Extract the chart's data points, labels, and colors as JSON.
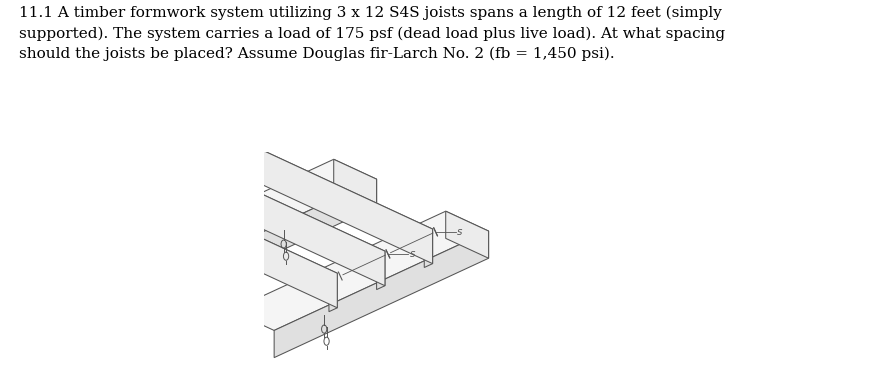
{
  "title_text": "11.1 A timber formwork system utilizing 3 x 12 S4S joists spans a length of 12 feet (simply\nsupported). The system carries a load of 175 psf (dead load plus live load). At what spacing\nshould the joists be placed? Assume Douglas fir-Larch No. 2 (fb = 1,450 psi).",
  "text_color": "#000000",
  "bg_color": "#ffffff",
  "font_size": 11.0,
  "fig_width": 8.77,
  "fig_height": 3.8,
  "dpi": 100,
  "line_color": "#555555",
  "face_color_top": "#f5f5f5",
  "face_color_front": "#e0e0e0",
  "face_color_side": "#ececec"
}
